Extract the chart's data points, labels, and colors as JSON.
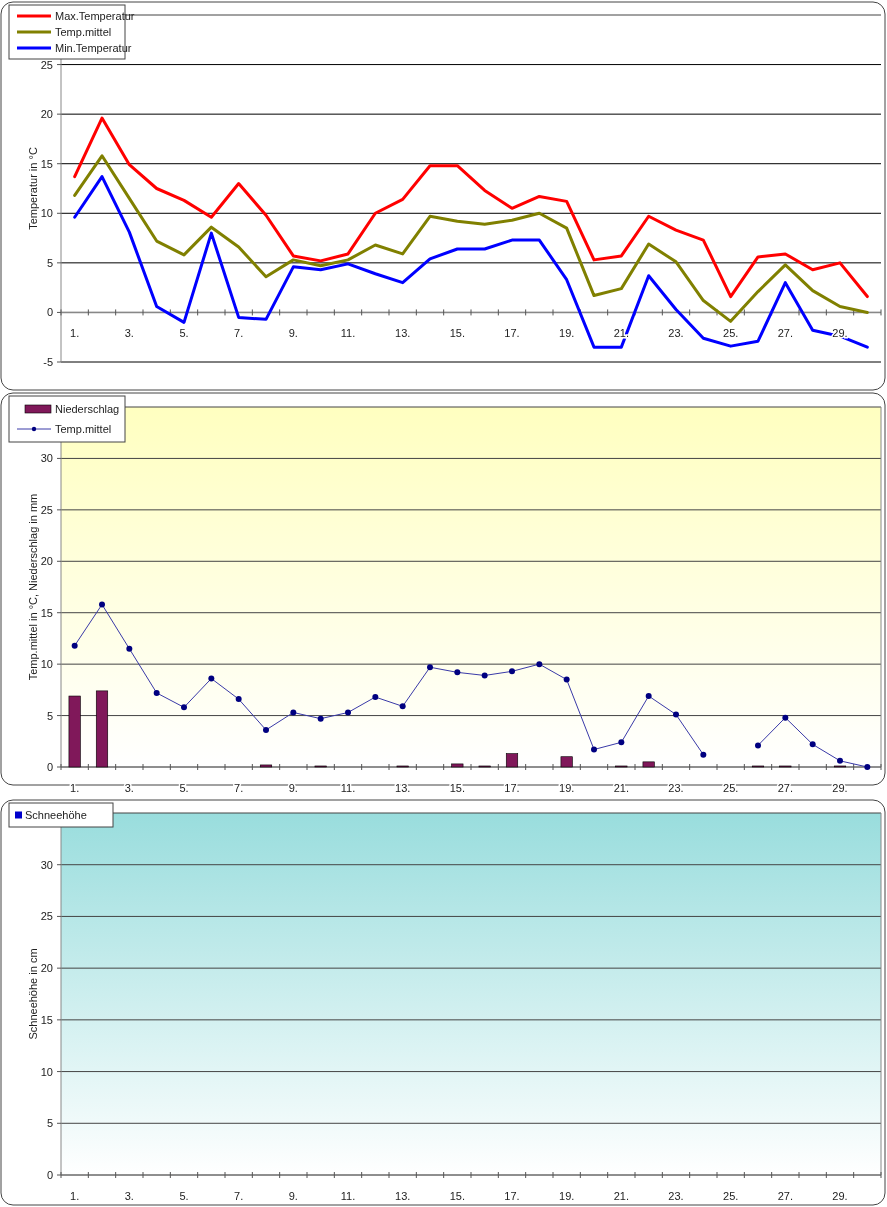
{
  "chart_data": [
    {
      "type": "line",
      "ylabel": "Temperatur  in °C",
      "categories": [
        "1.",
        null,
        "3.",
        null,
        "5.",
        null,
        "7.",
        null,
        "9.",
        null,
        "11.",
        null,
        "13.",
        null,
        "15.",
        null,
        "17.",
        null,
        "19.",
        null,
        "21.",
        null,
        "23.",
        null,
        "25.",
        null,
        "27.",
        null,
        "29.",
        null
      ],
      "ylim": [
        -5,
        30
      ],
      "yticks": [
        -5,
        0,
        5,
        10,
        15,
        20,
        25
      ],
      "grid": true,
      "legend": "top left",
      "series": [
        {
          "name": "Max.Temperatur",
          "color": "#ff0000",
          "values": [
            13.7,
            19.6,
            14.9,
            12.5,
            11.3,
            9.6,
            13.0,
            9.8,
            5.7,
            5.2,
            5.9,
            10.0,
            11.4,
            14.8,
            14.8,
            12.3,
            10.5,
            11.7,
            11.2,
            5.3,
            5.7,
            9.7,
            8.3,
            7.3,
            1.6,
            5.6,
            5.9,
            4.3,
            5.0,
            1.6
          ]
        },
        {
          "name": "Temp.mittel",
          "color": "#808000",
          "values": [
            11.8,
            15.8,
            11.5,
            7.2,
            5.8,
            8.6,
            6.6,
            3.6,
            5.3,
            4.7,
            5.3,
            6.8,
            5.9,
            9.7,
            9.2,
            8.9,
            9.3,
            10.0,
            8.5,
            1.7,
            2.4,
            6.9,
            5.1,
            1.2,
            -0.9,
            2.1,
            4.8,
            2.2,
            0.6,
            0.0
          ]
        },
        {
          "name": "Min.Temperatur",
          "color": "#0000ff",
          "values": [
            9.6,
            13.7,
            8.1,
            0.6,
            -1.0,
            8.0,
            -0.5,
            -0.7,
            4.6,
            4.3,
            4.9,
            3.9,
            3.0,
            5.4,
            6.4,
            6.4,
            7.3,
            7.3,
            3.3,
            -3.5,
            -3.5,
            3.7,
            0.3,
            -2.6,
            -3.4,
            -2.9,
            3.0,
            -1.8,
            -2.4,
            -3.5
          ]
        }
      ]
    },
    {
      "type": "bar",
      "ylabel": "Temp.mittel  in °C, Niederschlag in mm",
      "categories": [
        "1.",
        null,
        "3.",
        null,
        "5.",
        null,
        "7.",
        null,
        "9.",
        null,
        "11.",
        null,
        "13.",
        null,
        "15.",
        null,
        "17.",
        null,
        "19.",
        null,
        "21.",
        null,
        "23.",
        null,
        "25.",
        null,
        "27.",
        null,
        "29.",
        null
      ],
      "ylim": [
        0,
        35
      ],
      "yticks": [
        0,
        5,
        10,
        15,
        20,
        25,
        30
      ],
      "grid": true,
      "legend": "top left",
      "marker": "circle",
      "series": [
        {
          "name": "Niederschlag",
          "color": "#80185a",
          "values": [
            6.9,
            7.4,
            0,
            0,
            0,
            0,
            0,
            0.2,
            0,
            0.1,
            0,
            0,
            0.1,
            0,
            0.3,
            0.1,
            1.3,
            0,
            1.0,
            0,
            0.1,
            0.5,
            0,
            0,
            0,
            0.1,
            0.1,
            0,
            0.1,
            0
          ]
        },
        {
          "name": "Temp.mittel",
          "type": "line",
          "color": "#3a3aa8",
          "values": [
            11.8,
            15.8,
            11.5,
            7.2,
            5.8,
            8.6,
            6.6,
            3.6,
            5.3,
            4.7,
            5.3,
            6.8,
            5.9,
            9.7,
            9.2,
            8.9,
            9.3,
            10.0,
            8.5,
            1.7,
            2.4,
            6.9,
            5.1,
            1.2,
            null,
            2.1,
            4.8,
            2.2,
            0.6,
            0.0
          ]
        }
      ]
    },
    {
      "type": "bar",
      "ylabel": "Schneehöhe in cm",
      "categories": [
        "1.",
        null,
        "3.",
        null,
        "5.",
        null,
        "7.",
        null,
        "9.",
        null,
        "11.",
        null,
        "13.",
        null,
        "15.",
        null,
        "17.",
        null,
        "19.",
        null,
        "21.",
        null,
        "23.",
        null,
        "25.",
        null,
        "27.",
        null,
        "29.",
        null
      ],
      "ylim": [
        0,
        35
      ],
      "yticks": [
        0,
        5,
        10,
        15,
        20,
        25,
        30
      ],
      "grid": true,
      "legend": "top left",
      "series": [
        {
          "name": "Schneehöhe",
          "color": "#0000cc",
          "values": [
            0,
            0,
            0,
            0,
            0,
            0,
            0,
            0,
            0,
            0,
            0,
            0,
            0,
            0,
            0,
            0,
            0,
            0,
            0,
            0,
            0,
            0,
            0,
            0,
            0,
            0,
            0,
            0,
            0,
            0
          ]
        }
      ]
    }
  ]
}
